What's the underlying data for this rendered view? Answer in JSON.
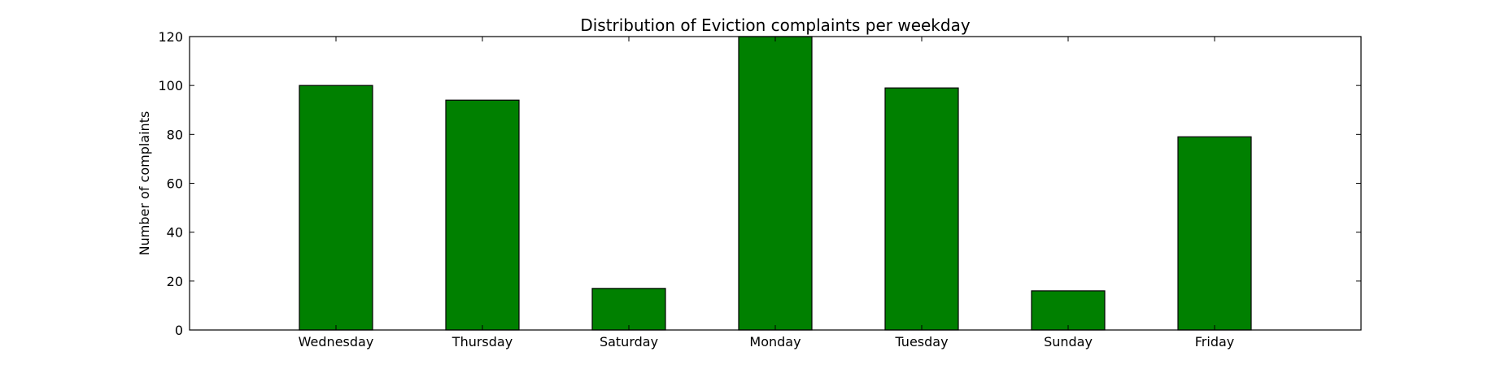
{
  "chart_data": {
    "type": "bar",
    "title": "Distribution of  Eviction complaints per weekday",
    "xlabel": "",
    "ylabel": "Number of complaints",
    "categories": [
      "Wednesday",
      "Thursday",
      "Saturday",
      "Monday",
      "Tuesday",
      "Sunday",
      "Friday"
    ],
    "values": [
      100,
      94,
      17,
      120,
      99,
      16,
      79
    ],
    "ylim": [
      0,
      120
    ],
    "yticks": [
      0,
      20,
      40,
      60,
      80,
      100,
      120
    ],
    "bar_color": "#008000",
    "edge_color": "#000000",
    "grid": false,
    "legend": "none"
  }
}
